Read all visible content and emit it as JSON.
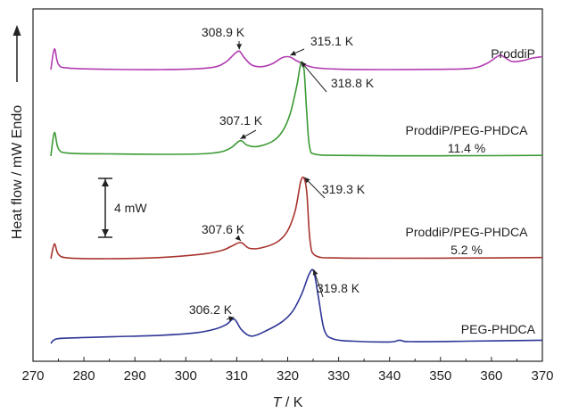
{
  "chart_data": {
    "type": "line",
    "xlabel_italic": "T",
    "xlabel_unit": " / K",
    "ylabel": "Heat flow / mW Endo",
    "xlim": [
      270,
      370
    ],
    "x_ticks": [
      270,
      280,
      290,
      300,
      310,
      320,
      330,
      340,
      350,
      360,
      370
    ],
    "grid": false,
    "scale_bar": {
      "label": "4 mW",
      "value_mW": 4
    },
    "series": [
      {
        "name": "ProddiP",
        "label_lines": [
          "ProddiP"
        ],
        "color": "#b23cb0",
        "points": [
          [
            273.5,
            0.0
          ],
          [
            274.2,
            1.4
          ],
          [
            275.0,
            0.35
          ],
          [
            277,
            0.1
          ],
          [
            285,
            0.02
          ],
          [
            295,
            0.0
          ],
          [
            302,
            0.05
          ],
          [
            306,
            0.2
          ],
          [
            308,
            0.55
          ],
          [
            309.5,
            1.05
          ],
          [
            310.5,
            1.25
          ],
          [
            311.5,
            0.8
          ],
          [
            313,
            0.3
          ],
          [
            315,
            0.2
          ],
          [
            317,
            0.4
          ],
          [
            319,
            0.82
          ],
          [
            320.5,
            0.85
          ],
          [
            322,
            0.55
          ],
          [
            325,
            0.15
          ],
          [
            330,
            0.03
          ],
          [
            340,
            0.0
          ],
          [
            350,
            0.02
          ],
          [
            356,
            0.08
          ],
          [
            359,
            0.4
          ],
          [
            361.5,
            0.95
          ],
          [
            362.5,
            0.85
          ],
          [
            364,
            0.55
          ],
          [
            366,
            0.6
          ],
          [
            368,
            0.78
          ],
          [
            370,
            0.88
          ]
        ]
      },
      {
        "name": "ProddiP/PEG-PHDCA",
        "label_lines": [
          "ProddiP/PEG-PHDCA",
          "11.4 %"
        ],
        "color": "#3a9a34",
        "points": [
          [
            273.5,
            0.0
          ],
          [
            274.2,
            1.6
          ],
          [
            275.0,
            0.5
          ],
          [
            277,
            0.2
          ],
          [
            285,
            0.15
          ],
          [
            295,
            0.12
          ],
          [
            303,
            0.15
          ],
          [
            307,
            0.3
          ],
          [
            309,
            0.6
          ],
          [
            310.7,
            1.05
          ],
          [
            312,
            0.75
          ],
          [
            314,
            0.65
          ],
          [
            317,
            1.0
          ],
          [
            319,
            1.7
          ],
          [
            320.5,
            2.9
          ],
          [
            321.8,
            4.8
          ],
          [
            322.6,
            6.3
          ],
          [
            323.2,
            5.9
          ],
          [
            323.7,
            3.2
          ],
          [
            324.3,
            0.6
          ],
          [
            325.5,
            0.12
          ],
          [
            330,
            0.05
          ],
          [
            340,
            0.02
          ],
          [
            360,
            0.03
          ],
          [
            370,
            0.05
          ]
        ]
      },
      {
        "name": "ProddiP/PEG-PHDCA",
        "label_lines": [
          "ProddiP/PEG-PHDCA",
          "5.2 %"
        ],
        "color": "#a8332e",
        "points": [
          [
            273.5,
            0.0
          ],
          [
            274.2,
            1.0
          ],
          [
            275.0,
            0.3
          ],
          [
            277,
            0.05
          ],
          [
            285,
            0.0
          ],
          [
            295,
            0.08
          ],
          [
            303,
            0.3
          ],
          [
            307,
            0.55
          ],
          [
            309,
            0.85
          ],
          [
            310.8,
            1.1
          ],
          [
            312.5,
            0.7
          ],
          [
            315,
            0.75
          ],
          [
            318,
            1.15
          ],
          [
            320,
            1.9
          ],
          [
            321.5,
            3.3
          ],
          [
            322.6,
            5.3
          ],
          [
            323.3,
            5.4
          ],
          [
            323.8,
            4.3
          ],
          [
            324.4,
            1.2
          ],
          [
            325.5,
            0.2
          ],
          [
            330,
            0.05
          ],
          [
            340,
            0.03
          ],
          [
            360,
            0.05
          ],
          [
            370,
            0.08
          ]
        ]
      },
      {
        "name": "PEG-PHDCA",
        "label_lines": [
          "PEG-PHDCA"
        ],
        "color": "#2e3596",
        "points": [
          [
            273.5,
            0.0
          ],
          [
            274.2,
            0.25
          ],
          [
            276,
            0.35
          ],
          [
            285,
            0.45
          ],
          [
            295,
            0.55
          ],
          [
            302,
            0.72
          ],
          [
            306,
            1.0
          ],
          [
            308,
            1.3
          ],
          [
            309.5,
            1.65
          ],
          [
            311,
            0.9
          ],
          [
            313,
            0.5
          ],
          [
            316,
            0.9
          ],
          [
            319,
            1.5
          ],
          [
            321,
            2.2
          ],
          [
            322.8,
            3.4
          ],
          [
            324.2,
            4.7
          ],
          [
            325.1,
            4.9
          ],
          [
            326,
            3.2
          ],
          [
            327.2,
            0.9
          ],
          [
            329,
            0.3
          ],
          [
            333,
            0.15
          ],
          [
            340,
            0.1
          ],
          [
            342,
            0.22
          ],
          [
            344,
            0.12
          ],
          [
            355,
            0.15
          ],
          [
            370,
            0.22
          ]
        ]
      }
    ],
    "annotations": [
      {
        "text": "308.9 K",
        "series": 0,
        "at_x": 310.5
      },
      {
        "text": "315.1 K",
        "series": 0,
        "at_x": 320.5
      },
      {
        "text": "307.1 K",
        "series": 1,
        "at_x": 310.7
      },
      {
        "text": "318.8 K",
        "series": 1,
        "at_x": 322.6
      },
      {
        "text": "307.6 K",
        "series": 2,
        "at_x": 310.8
      },
      {
        "text": "319.3 K",
        "series": 2,
        "at_x": 323.3
      },
      {
        "text": "306.2 K",
        "series": 3,
        "at_x": 309.5
      },
      {
        "text": "319.8 K",
        "series": 3,
        "at_x": 325.1
      }
    ]
  }
}
